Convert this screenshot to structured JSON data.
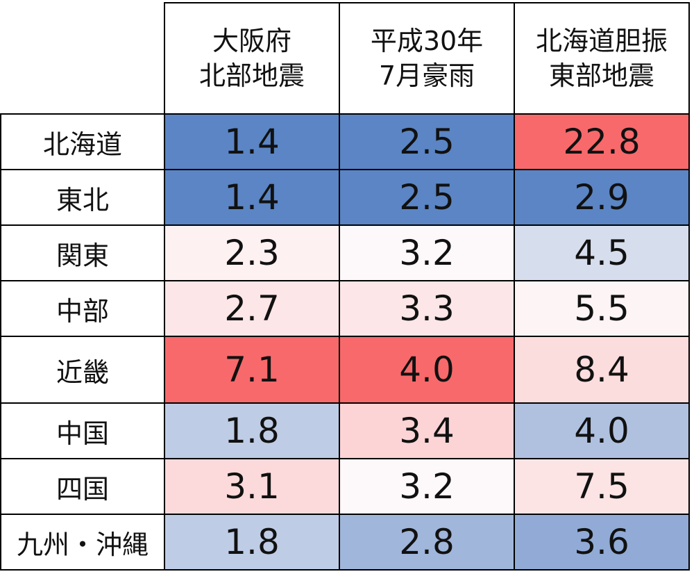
{
  "chart_data": {
    "type": "heatmap",
    "columns": [
      [
        "大阪府",
        "北部地震"
      ],
      [
        "平成30年",
        "7月豪雨"
      ],
      [
        "北海道胆振",
        "東部地震"
      ]
    ],
    "rows": [
      "北海道",
      "東北",
      "関東",
      "中部",
      "近畿",
      "中国",
      "四国",
      "九州・沖縄"
    ],
    "values": [
      [
        "1.4",
        "2.5",
        "22.8"
      ],
      [
        "1.4",
        "2.5",
        "2.9"
      ],
      [
        "2.3",
        "3.2",
        "4.5"
      ],
      [
        "2.7",
        "3.3",
        "5.5"
      ],
      [
        "7.1",
        "4.0",
        "8.4"
      ],
      [
        "1.8",
        "3.4",
        "4.0"
      ],
      [
        "3.1",
        "3.2",
        "7.5"
      ],
      [
        "1.8",
        "2.8",
        "3.6"
      ]
    ],
    "colors": {
      "low": "#5b85c4",
      "mid": "#fdf8f9",
      "high": "#f8696b"
    }
  }
}
